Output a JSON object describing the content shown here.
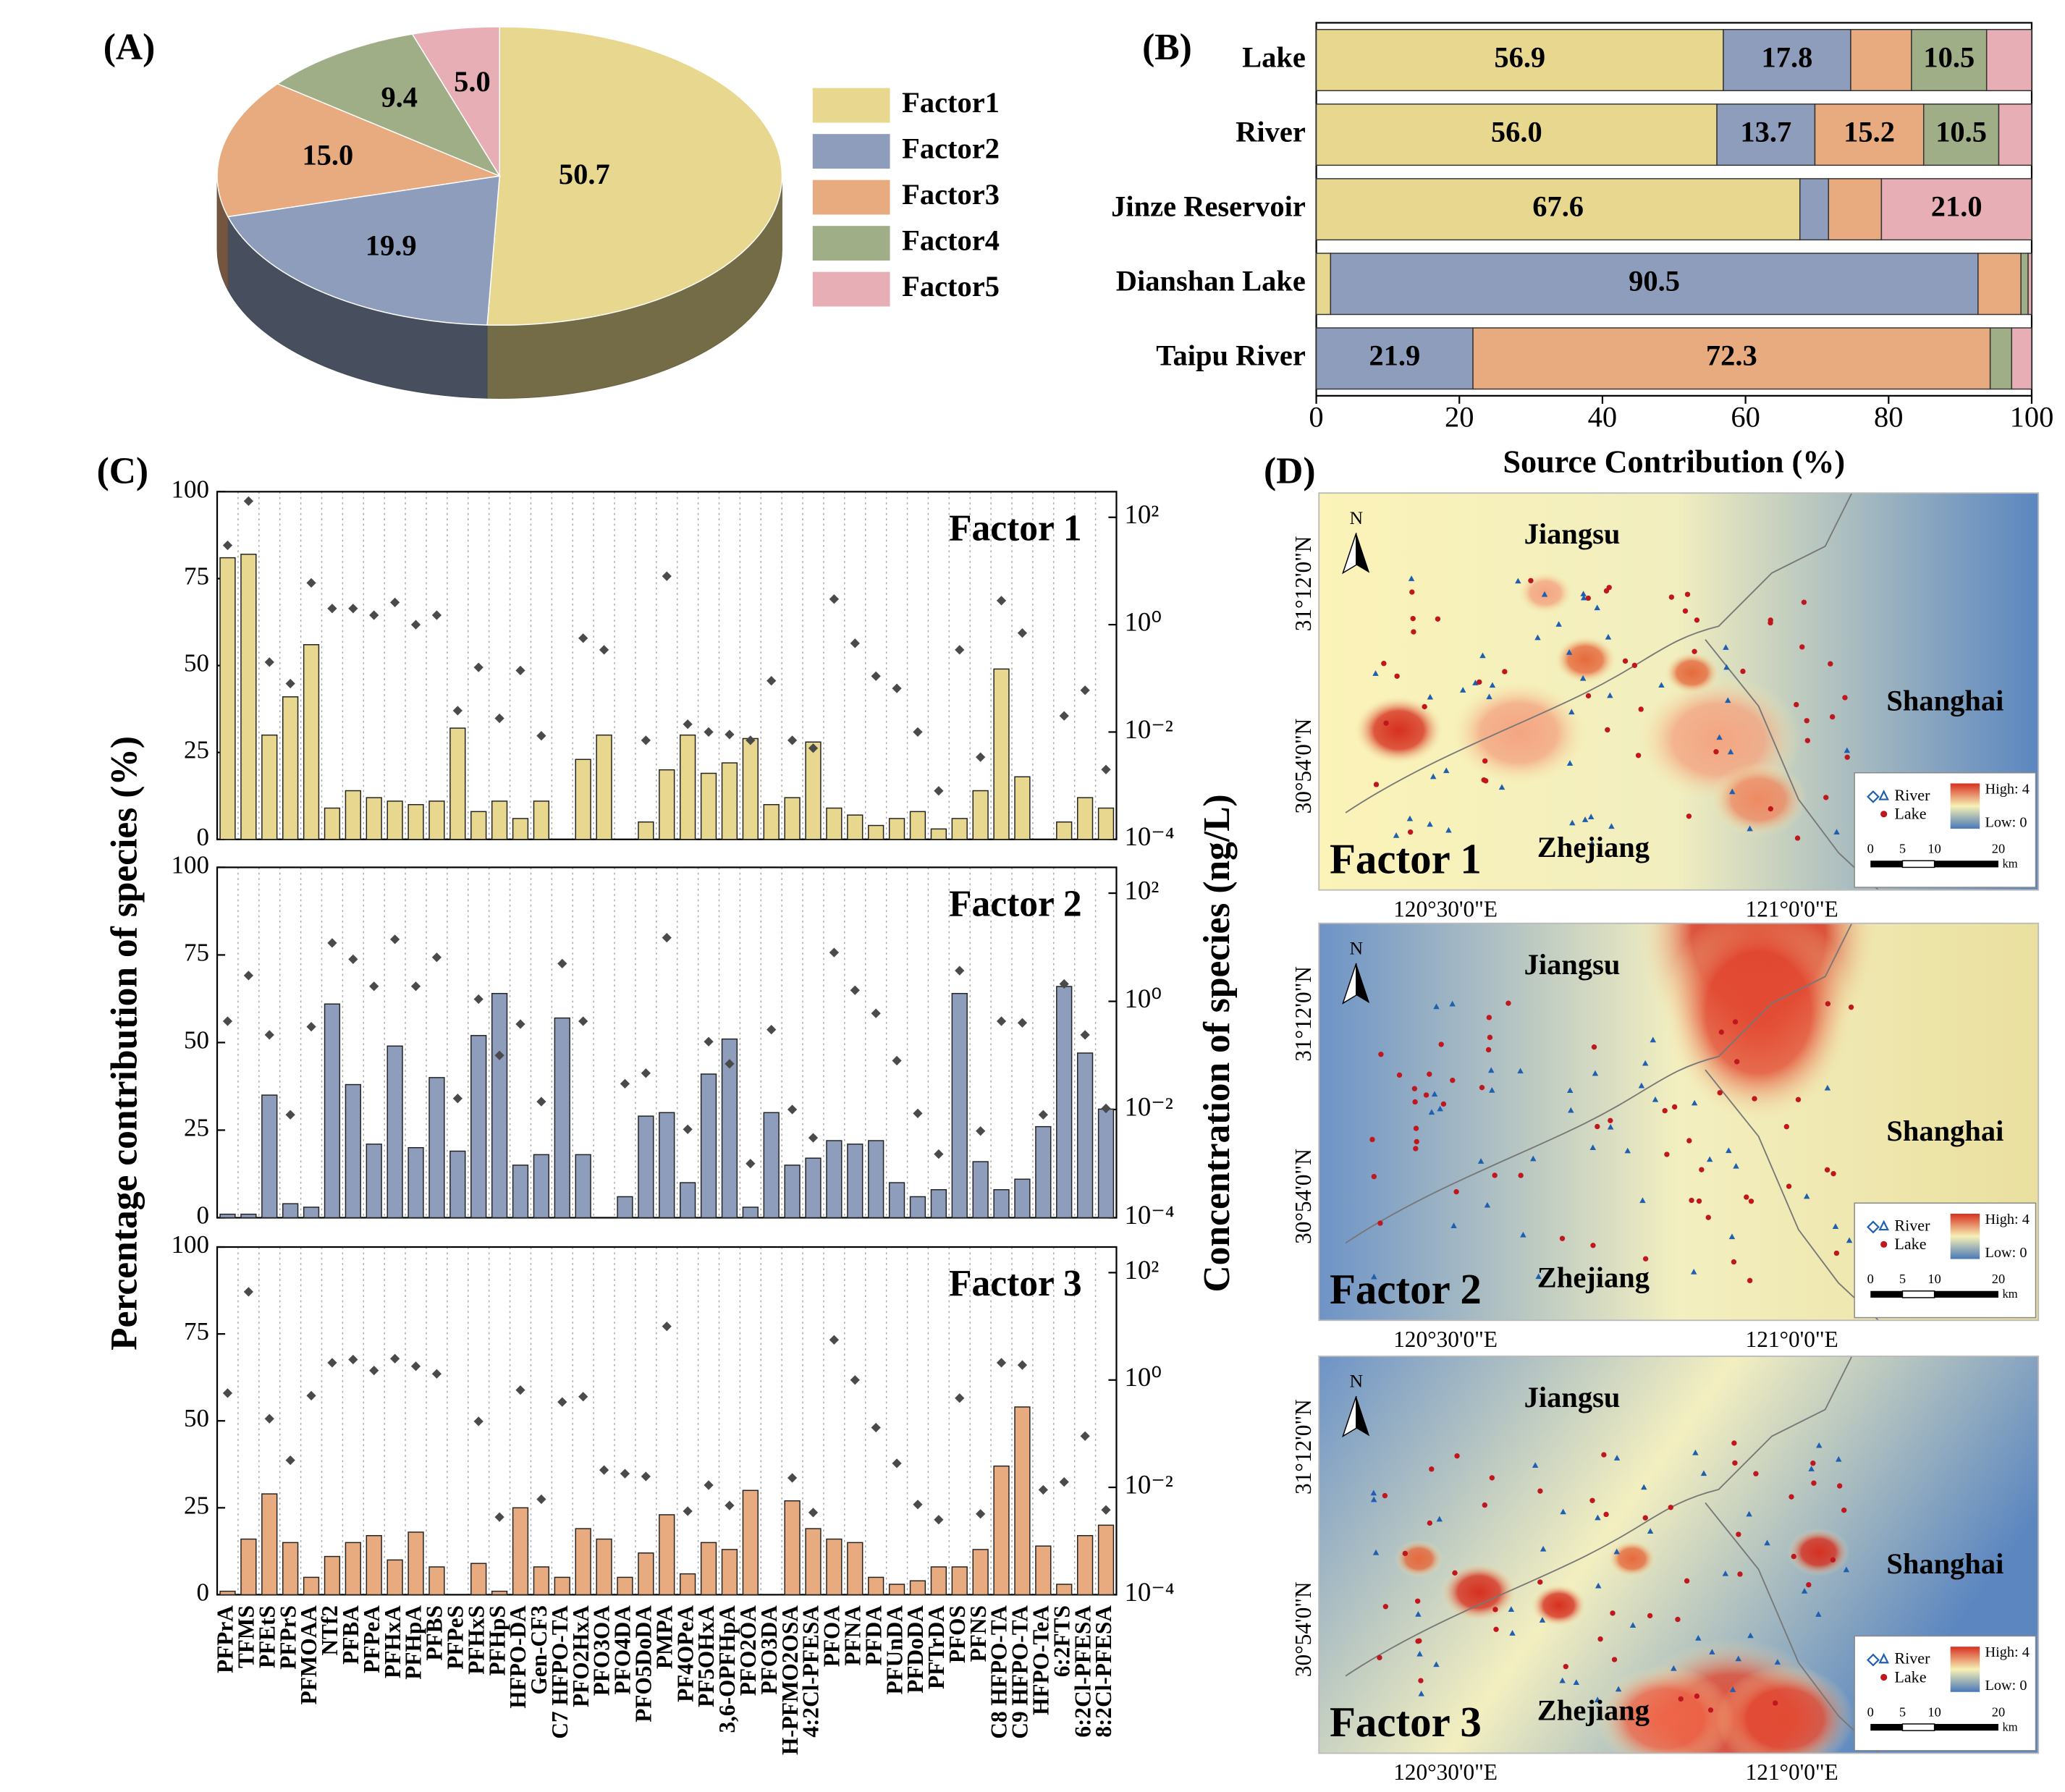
{
  "chart_data": [
    {
      "type": "pie",
      "panel_label": "(A)",
      "categories": [
        "Factor1",
        "Factor2",
        "Factor3",
        "Factor4",
        "Factor5"
      ],
      "values": [
        50.7,
        19.9,
        15.0,
        9.4,
        5.0
      ],
      "value_labels": [
        "50.7",
        "19.9",
        "15.0",
        "9.4",
        "5.0"
      ],
      "colors": [
        "#e8d78e",
        "#8e9dbb",
        "#e8ab7f",
        "#9fae87",
        "#e8aeb5"
      ],
      "legend": "right"
    },
    {
      "type": "stacked_barh",
      "panel_label": "(B)",
      "categories": [
        "Lake",
        "River",
        "Jinze Reservoir",
        "Dianshan Lake",
        "Taipu River"
      ],
      "xlabel": "Source Contribution (%)",
      "xlim": [
        0,
        100
      ],
      "xticks": [
        0,
        20,
        40,
        60,
        80,
        100
      ],
      "series": [
        {
          "color": "#e8d78e",
          "values": [
            56.9,
            56.0,
            67.6,
            2.0,
            0
          ],
          "value_labels": [
            "56.9",
            "56.0",
            "67.6",
            null,
            null
          ]
        },
        {
          "color": "#8e9dbb",
          "values": [
            17.8,
            13.7,
            4.0,
            90.5,
            21.9
          ],
          "value_labels": [
            "17.8",
            "13.7",
            null,
            "90.5",
            "21.9"
          ]
        },
        {
          "color": "#e8ab7f",
          "values": [
            8.5,
            15.2,
            7.4,
            6.0,
            72.3
          ],
          "value_labels": [
            null,
            "15.2",
            null,
            null,
            "72.3"
          ]
        },
        {
          "color": "#9fae87",
          "values": [
            10.5,
            10.5,
            0,
            1.0,
            3.0
          ],
          "value_labels": [
            "10.5",
            "10.5",
            null,
            null,
            null
          ]
        },
        {
          "color": "#e8aeb5",
          "values": [
            6.3,
            4.6,
            21.0,
            0.5,
            2.8
          ],
          "value_labels": [
            null,
            null,
            "21.0",
            null,
            null
          ]
        }
      ]
    },
    {
      "type": "bar_scatter",
      "panel_label": "(C)",
      "ylabel": "Percentage contribution of species (%)",
      "y2label": "Concentration of species (ng/L)",
      "categories": [
        "PFPrA",
        "TFMS",
        "PFEtS",
        "PFPrS",
        "PFMOAA",
        "NTf2",
        "PFBA",
        "PFPeA",
        "PFHxA",
        "PFHpA",
        "PFBS",
        "PFPeS",
        "PFHxS",
        "PFHpS",
        "HFPO-DA",
        "Gen-CF3",
        "C7 HFPO-TA",
        "PFO2HxA",
        "PFO3OA",
        "PFO4DA",
        "PFO5DoDA",
        "PMPA",
        "PF4OPeA",
        "PF5OHxA",
        "3,6-OPFHpA",
        "PFO2OA",
        "PFO3DA",
        "H-PFMO2OSA",
        "4:2Cl-PFESA",
        "PFOA",
        "PFNA",
        "PFDA",
        "PFUnDA",
        "PFDoDA",
        "PFTrDA",
        "PFOS",
        "PFNS",
        "C8 HFPO-TA",
        "C9 HFPO-TA",
        "HFPO-TeA",
        "6:2FTS",
        "6:2Cl-PFESA",
        "8:2Cl-PFESA"
      ],
      "ylim": [
        0,
        100
      ],
      "yticks": [
        0,
        25,
        50,
        75,
        100
      ],
      "y2lim": [
        0.0001,
        300
      ],
      "y2log": true,
      "y2ticks": [
        {
          "value": 0.0001,
          "label": "10⁻⁴"
        },
        {
          "value": 0.01,
          "label": "10⁻²"
        },
        {
          "value": 1,
          "label": "10⁰"
        },
        {
          "value": 100,
          "label": "10²"
        }
      ],
      "panels": [
        {
          "title": "Factor 1",
          "series": [
            {
              "color": "#e8d78e",
              "values": [
                81,
                82,
                30,
                41,
                56,
                9,
                14,
                12,
                11,
                10,
                11,
                32,
                8,
                11,
                6,
                11,
                null,
                23,
                30,
                null,
                5,
                20,
                30,
                19,
                22,
                29,
                10,
                12,
                28,
                9,
                7,
                4,
                6,
                8,
                3,
                6,
                14,
                49,
                18,
                null,
                5,
                12,
                9
              ]
            },
            {
              "axis": "y2",
              "marker": "diamond",
              "color": "#4a4a4a",
              "values": [
                30,
                200,
                0.2,
                0.08,
                6,
                2,
                2,
                1.5,
                2.6,
                1,
                1.5,
                0.025,
                0.16,
                0.018,
                0.14,
                0.0085,
                null,
                0.56,
                0.34,
                null,
                0.007,
                8,
                0.014,
                0.01,
                0.009,
                0.007,
                0.09,
                0.007,
                0.005,
                3,
                0.45,
                0.11,
                0.065,
                0.01,
                0.0008,
                0.34,
                0.0034,
                2.8,
                0.7,
                null,
                0.02,
                0.06,
                0.002
              ]
            }
          ]
        },
        {
          "title": "Factor 2",
          "series": [
            {
              "color": "#8e9dbb",
              "values": [
                1,
                1,
                35,
                4,
                3,
                61,
                38,
                21,
                49,
                20,
                40,
                19,
                52,
                64,
                15,
                18,
                57,
                18,
                null,
                6,
                29,
                30,
                10,
                41,
                51,
                3,
                30,
                15,
                17,
                22,
                21,
                22,
                10,
                6,
                8,
                64,
                16,
                8,
                11,
                26,
                66,
                47,
                31
              ]
            },
            {
              "axis": "y2",
              "marker": "diamond",
              "color": "#4a4a4a",
              "values": [
                0.43,
                3,
                0.24,
                0.008,
                0.34,
                12,
                6,
                1.9,
                14,
                1.9,
                6.5,
                0.016,
                1.1,
                0.1,
                0.38,
                0.014,
                5,
                0.43,
                null,
                0.03,
                0.047,
                15,
                0.0043,
                0.18,
                0.07,
                0.001,
                0.3,
                0.01,
                0.003,
                8,
                1.6,
                0.6,
                0.08,
                0.0085,
                0.0015,
                3.7,
                0.004,
                0.43,
                0.4,
                0.008,
                2.1,
                0.24,
                0.0105
              ]
            }
          ]
        },
        {
          "title": "Factor 3",
          "series": [
            {
              "color": "#e8ab7f",
              "values": [
                1,
                16,
                29,
                15,
                5,
                11,
                15,
                17,
                10,
                18,
                8,
                null,
                9,
                1,
                25,
                8,
                5,
                19,
                16,
                5,
                12,
                23,
                6,
                15,
                13,
                30,
                null,
                27,
                19,
                16,
                15,
                5,
                3,
                4,
                8,
                8,
                13,
                37,
                54,
                14,
                3,
                17,
                20
              ]
            },
            {
              "axis": "y2",
              "marker": "diamond",
              "color": "#4a4a4a",
              "values": [
                0.57,
                44,
                0.19,
                0.032,
                0.51,
                2.1,
                2.4,
                1.5,
                2.5,
                1.8,
                1.3,
                null,
                0.17,
                0.0028,
                0.65,
                0.006,
                0.39,
                0.49,
                0.021,
                0.018,
                0.016,
                10,
                0.0036,
                0.011,
                0.0046,
                null,
                null,
                0.015,
                0.0034,
                5.6,
                1.0,
                0.13,
                0.028,
                0.0048,
                0.0025,
                0.46,
                0.0032,
                2.1,
                1.9,
                0.009,
                0.0126,
                0.09,
                0.0038
              ]
            }
          ]
        }
      ]
    }
  ],
  "maps": {
    "panel_label": "(D)",
    "titles": [
      "Factor 1",
      "Factor 2",
      "Factor 3"
    ],
    "regions": [
      "Jiangsu",
      "Shanghai",
      "Zhejiang"
    ],
    "north": "N",
    "lat_labels": [
      "31°12'0\"N",
      "30°54'0\"N"
    ],
    "lon_labels": [
      "120°30'0\"E",
      "121°0'0\"E"
    ],
    "legend": {
      "river": "River",
      "lake": "Lake",
      "high": "High: 4",
      "low": "Low: 0"
    },
    "scale": [
      "0",
      "5",
      "10",
      "20"
    ],
    "scale_unit": "km"
  }
}
